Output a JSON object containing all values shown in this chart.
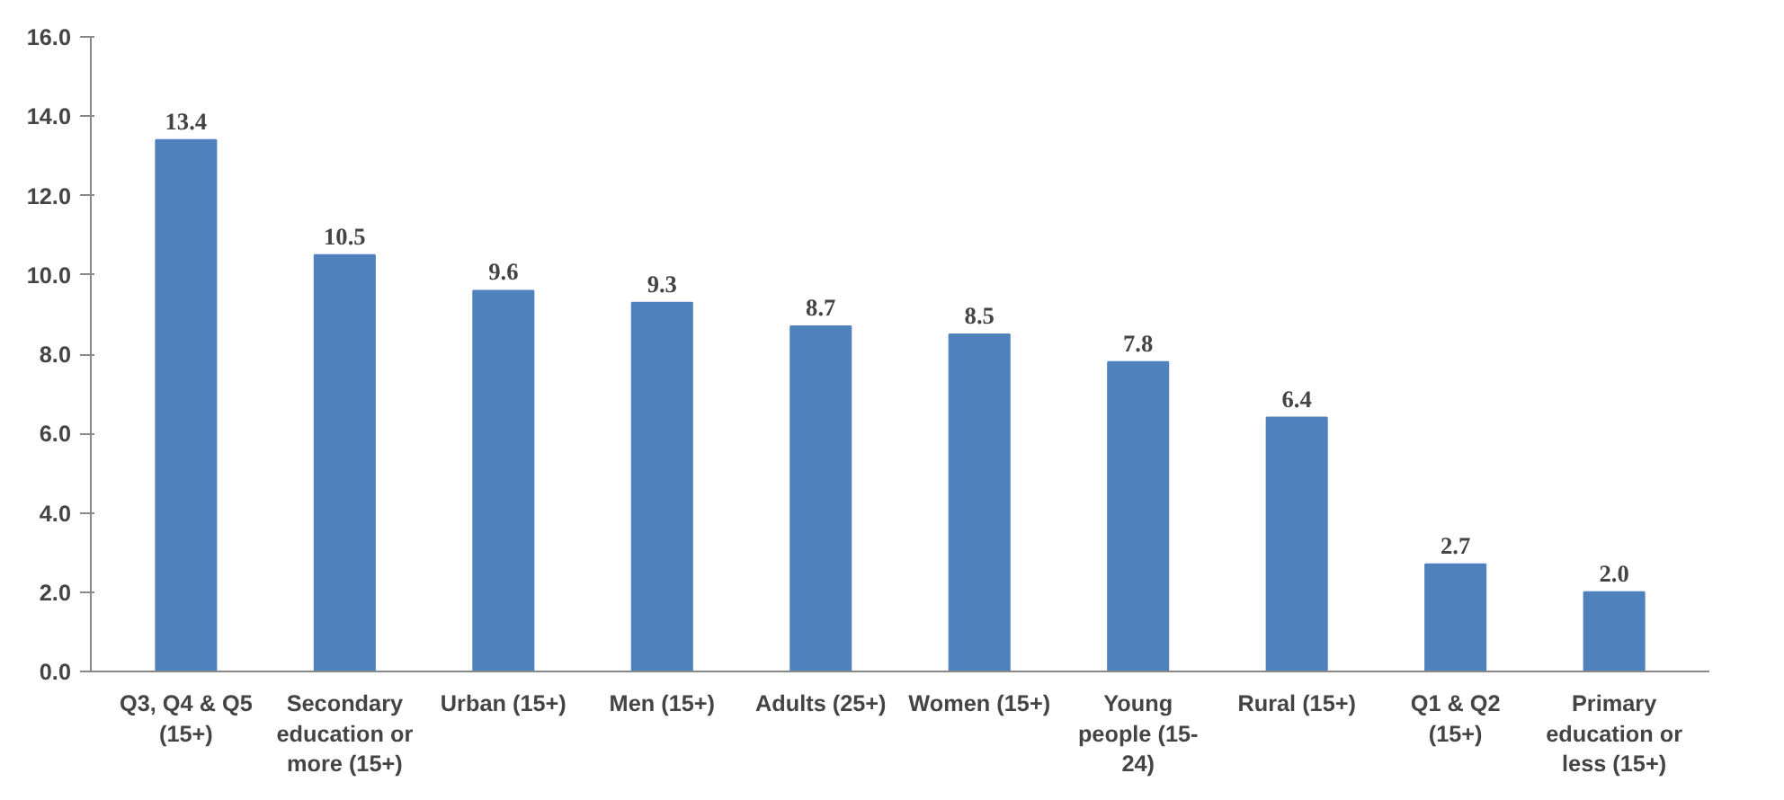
{
  "chart_data": {
    "type": "bar",
    "categories": [
      "Q3, Q4 & Q5\n(15+)",
      "Secondary\neducation or\nmore (15+)",
      "Urban (15+)",
      "Men (15+)",
      "Adults (25+)",
      "Women (15+)",
      "Young\npeople (15-\n24)",
      "Rural (15+)",
      "Q1 & Q2\n(15+)",
      "Primary\neducation or\nless (15+)"
    ],
    "values": [
      13.4,
      10.5,
      9.6,
      9.3,
      8.7,
      8.5,
      7.8,
      6.4,
      2.7,
      2.0
    ],
    "value_labels": [
      "13.4",
      "10.5",
      "9.6",
      "9.3",
      "8.7",
      "8.5",
      "7.8",
      "6.4",
      "2.7",
      "2.0"
    ],
    "color": "#4f81bd",
    "ylim": [
      0,
      16
    ],
    "yticks": [
      {
        "value": 0,
        "label": "0.0"
      },
      {
        "value": 2,
        "label": "2.0"
      },
      {
        "value": 4,
        "label": "4.0"
      },
      {
        "value": 6,
        "label": "6.0"
      },
      {
        "value": 8,
        "label": "8.0"
      },
      {
        "value": 10,
        "label": "10.0"
      },
      {
        "value": 12,
        "label": "12.0"
      },
      {
        "value": 14,
        "label": "14.0"
      },
      {
        "value": 16,
        "label": "16.0"
      }
    ],
    "grid": false
  }
}
